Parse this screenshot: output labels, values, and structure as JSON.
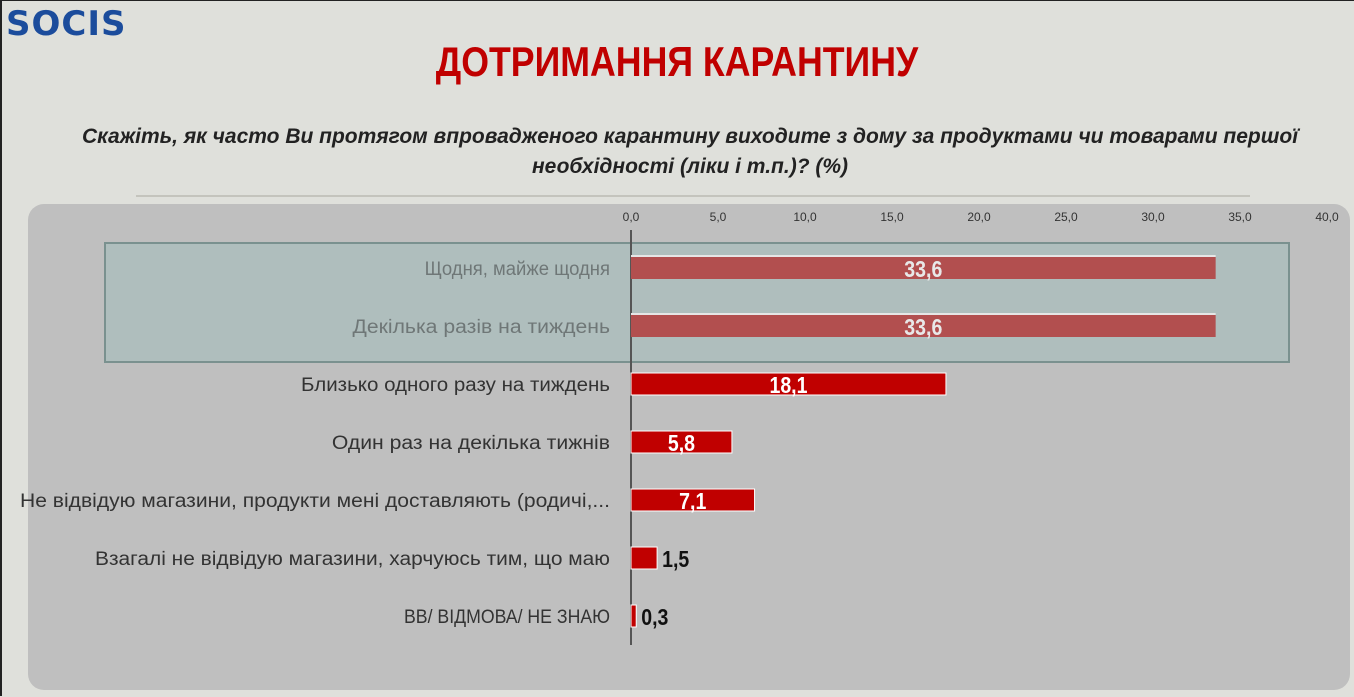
{
  "logo": "SOCIS",
  "title": "ДОТРИМАННЯ КАРАНТИНУ",
  "question": "Скажіть, як часто Ви протягом впровадженого карантину виходите з дому за продуктами чи товарами першої необхідності (ліки і т.п.)? (%)",
  "chart_data": {
    "type": "bar",
    "orientation": "horizontal",
    "categories": [
      "Щодня, майже щодня",
      "Декілька разів на тиждень",
      "Близько одного разу на тиждень",
      "Один раз на декілька тижнів",
      "Не відвідую магазини, продукти мені доставляють (родичі,...",
      "Взагалі не відвідую магазини, харчуюсь тим, що маю",
      "ВВ/ ВІДМОВА/ НЕ ЗНАЮ"
    ],
    "values": [
      33.6,
      33.6,
      18.1,
      5.8,
      7.1,
      1.5,
      0.3
    ],
    "value_labels": [
      "33,6",
      "33,6",
      "18,1",
      "5,8",
      "7,1",
      "1,5",
      "0,3"
    ],
    "xlim": [
      0,
      40
    ],
    "ticks": [
      "0,0",
      "5,0",
      "10,0",
      "15,0",
      "20,0",
      "25,0",
      "30,0",
      "35,0",
      "40,0"
    ],
    "axis_position": "top",
    "highlighted": [
      0,
      1
    ],
    "colors": {
      "bar": "#c00000",
      "highlight_bar": "#b24f4f",
      "highlight_box": "#afbebd"
    }
  }
}
